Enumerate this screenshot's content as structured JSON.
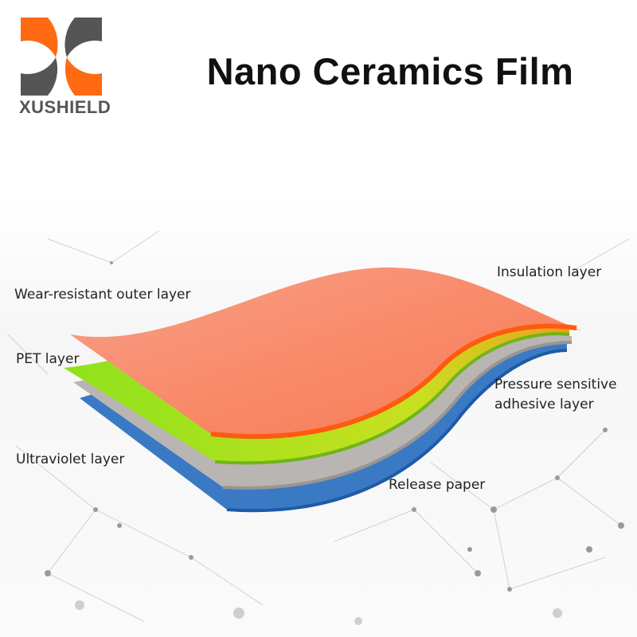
{
  "brand": {
    "name": "XUSHIELD",
    "colors": {
      "orange": "#ff6a13",
      "gray": "#555555"
    }
  },
  "title": "Nano Ceramics Film",
  "labels": {
    "wear": "Wear-resistant outer layer",
    "insulation": "Insulation layer",
    "pet": "PET layer",
    "psa_line1": "Pressure sensitive",
    "psa_line2": "adhesive layer",
    "uv": "Ultraviolet layer",
    "release": "Release paper"
  },
  "layer_colors": {
    "top": "#f9805f",
    "orange_edge": "#ff5a10",
    "green": "#8fe01e",
    "gray": "#b9b5b3",
    "blue": "#3a7ac4"
  }
}
